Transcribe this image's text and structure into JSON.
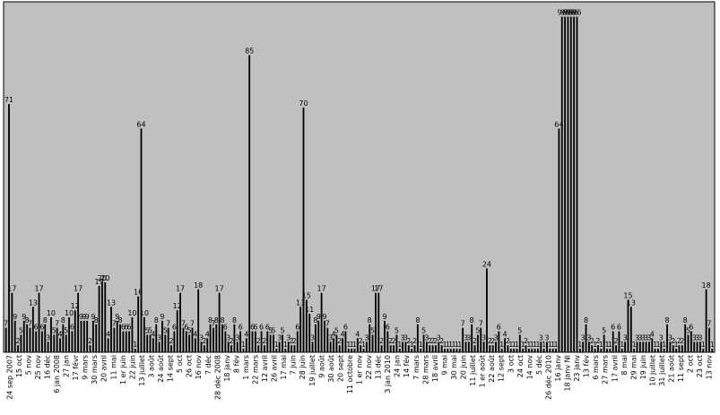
{
  "chart_data": {
    "type": "bar",
    "title": "",
    "xlabel": "",
    "ylabel": "",
    "ylim": [
      0,
      100
    ],
    "grid": false,
    "legend": "none",
    "colors": {
      "plot_background": "#c0c0c0",
      "bar": "#000000",
      "axis": "#000000"
    },
    "values": [
      7,
      71,
      17,
      9,
      2,
      5,
      9,
      8,
      7,
      13,
      6,
      17,
      6,
      8,
      3,
      10,
      5,
      7,
      4,
      8,
      5,
      10,
      6,
      12,
      17,
      9,
      9,
      9,
      2,
      9,
      8,
      19,
      20,
      20,
      4,
      13,
      7,
      9,
      8,
      6,
      6,
      6,
      10,
      1,
      16,
      64,
      10,
      5,
      5,
      4,
      8,
      3,
      9,
      5,
      7,
      2,
      6,
      12,
      17,
      7,
      6,
      5,
      7,
      4,
      18,
      3,
      2,
      4,
      8,
      7,
      8,
      17,
      8,
      6,
      3,
      2,
      8,
      3,
      6,
      1,
      4,
      85,
      6,
      6,
      2,
      6,
      2,
      6,
      5,
      5,
      1,
      3,
      5,
      1,
      3,
      2,
      2,
      6,
      13,
      70,
      15,
      11,
      3,
      8,
      9,
      17,
      9,
      7,
      3,
      4,
      5,
      2,
      4,
      6,
      1,
      1,
      1,
      4,
      2,
      1,
      3,
      8,
      5,
      17,
      17,
      2,
      9,
      6,
      2,
      2,
      5,
      1,
      3,
      3,
      2,
      1,
      2,
      8,
      1,
      5,
      3,
      2,
      2,
      2,
      3,
      2,
      1,
      1,
      1,
      1,
      1,
      1,
      7,
      3,
      3,
      8,
      2,
      5,
      7,
      3,
      24,
      2,
      2,
      3,
      6,
      1,
      4,
      2,
      1,
      1,
      1,
      5,
      1,
      2,
      1,
      1,
      1,
      1,
      3,
      1,
      3,
      1,
      1,
      1,
      64,
      96,
      96,
      96,
      96,
      96,
      96,
      1,
      3,
      8,
      3,
      2,
      1,
      2,
      1,
      5,
      1,
      1,
      6,
      2,
      6,
      1,
      3,
      15,
      13,
      1,
      3,
      3,
      3,
      3,
      3,
      4,
      1,
      1,
      3,
      1,
      8,
      3,
      2,
      1,
      2,
      2,
      8,
      5,
      6,
      3,
      3,
      3,
      1,
      18,
      7,
      1
    ],
    "tick_labels": [
      "24 sep 2007",
      "15 oct",
      "5 nov",
      "25 nov",
      "16 déc",
      "6 jan 2008",
      "27 jan",
      "17 févr",
      "9 mars",
      "30 mars",
      "20 avril",
      "11 mai",
      "1 er juin",
      "22 juin",
      "13 juillet",
      "3 août",
      "24 août",
      "14 sept",
      "5 oct",
      "26 oct",
      "16 nov",
      "7 déc",
      "28 déc 2008",
      "18 janv",
      "8 fév",
      "1 mars",
      "22 mars",
      "12 avril",
      "26 avril",
      "17 mai",
      "7 juin",
      "28 juin",
      "19 juillet",
      "9 août",
      "30 août",
      "20 sept",
      "11 octobre",
      "1 er nov",
      "22 nov",
      "13 déc",
      "3 jan 2010",
      "24 jan",
      "14 fév",
      "7 mars",
      "28 mars",
      "18 avril",
      "9 mai",
      "30 mai",
      "20 juin",
      "11 juillet",
      "1 er août",
      "22 août",
      "12 sept",
      "3 oct",
      "24 oct",
      "14 nov",
      "5 déc",
      "26 déc 2010",
      "16 janv",
      "18 janv NI",
      "23 janv",
      "13 fév",
      "6 mars",
      "27 mars",
      "17 avril",
      "8 mai",
      "29 mai",
      "19 juin",
      "10 juillet",
      "31 juillet",
      "21 août",
      "11 sept",
      "2 oct",
      "23 oct",
      "13 nov"
    ]
  }
}
